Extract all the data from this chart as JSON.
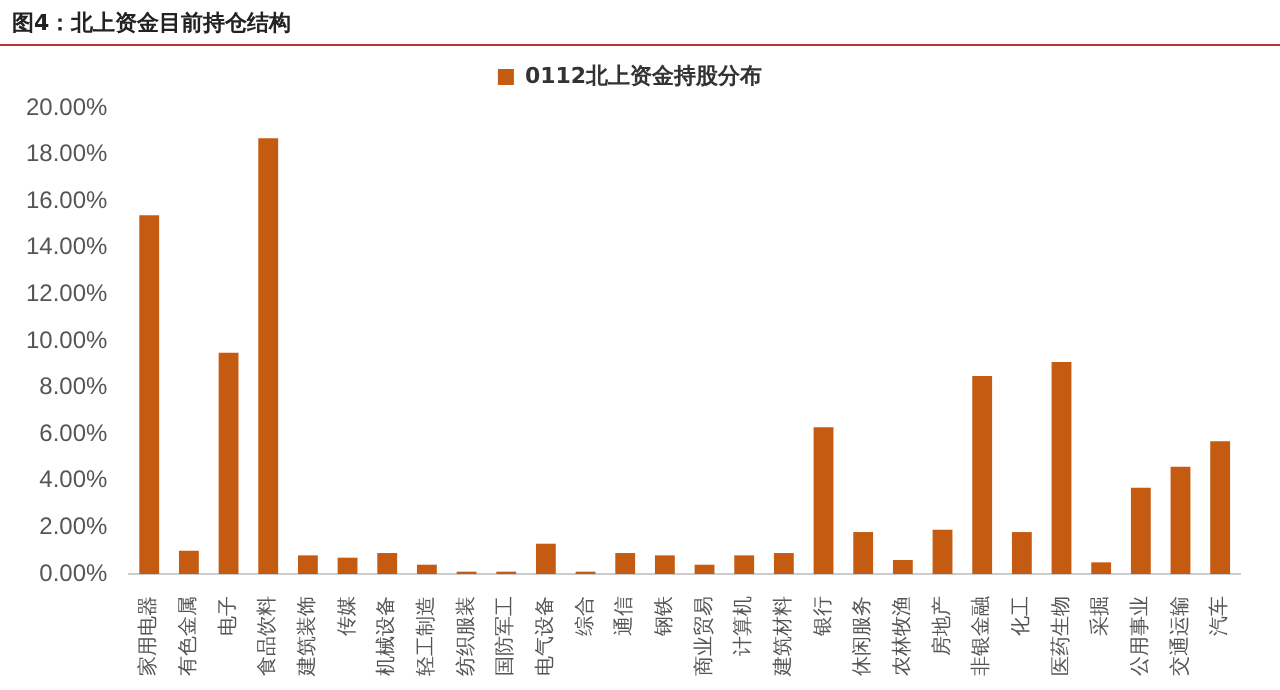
{
  "chart_data": {
    "type": "bar",
    "title": "图4：北上资金目前持仓结构",
    "categories": [
      "家用电器",
      "有色金属",
      "电子",
      "食品饮料",
      "建筑装饰",
      "传媒",
      "机械设备",
      "轻工制造",
      "纺织服装",
      "国防军工",
      "电气设备",
      "综合",
      "通信",
      "钢铁",
      "商业贸易",
      "计算机",
      "建筑材料",
      "银行",
      "休闲服务",
      "农林牧渔",
      "房地产",
      "非银金融",
      "化工",
      "医药生物",
      "采掘",
      "公用事业",
      "交通运输",
      "汽车"
    ],
    "series": [
      {
        "name": "0112北上资金持股分布",
        "color": "#c55a11",
        "values": [
          15.4,
          1.0,
          9.5,
          18.7,
          0.8,
          0.7,
          0.9,
          0.4,
          0.1,
          0.1,
          1.3,
          0.1,
          0.9,
          0.8,
          0.4,
          0.8,
          0.9,
          6.3,
          1.8,
          0.6,
          1.9,
          8.5,
          1.8,
          9.1,
          0.5,
          3.7,
          4.6,
          5.7
        ]
      }
    ],
    "ylim": [
      0,
      20
    ],
    "yticks": [
      {
        "value": 0,
        "label": "0.00%"
      },
      {
        "value": 2,
        "label": "2.00%"
      },
      {
        "value": 4,
        "label": "4.00%"
      },
      {
        "value": 6,
        "label": "6.00%"
      },
      {
        "value": 8,
        "label": "8.00%"
      },
      {
        "value": 10,
        "label": "10.00%"
      },
      {
        "value": 12,
        "label": "12.00%"
      },
      {
        "value": 14,
        "label": "14.00%"
      },
      {
        "value": 16,
        "label": "16.00%"
      },
      {
        "value": 18,
        "label": "18.00%"
      },
      {
        "value": 20,
        "label": "20.00%"
      }
    ],
    "grid": false,
    "legend": "top"
  }
}
